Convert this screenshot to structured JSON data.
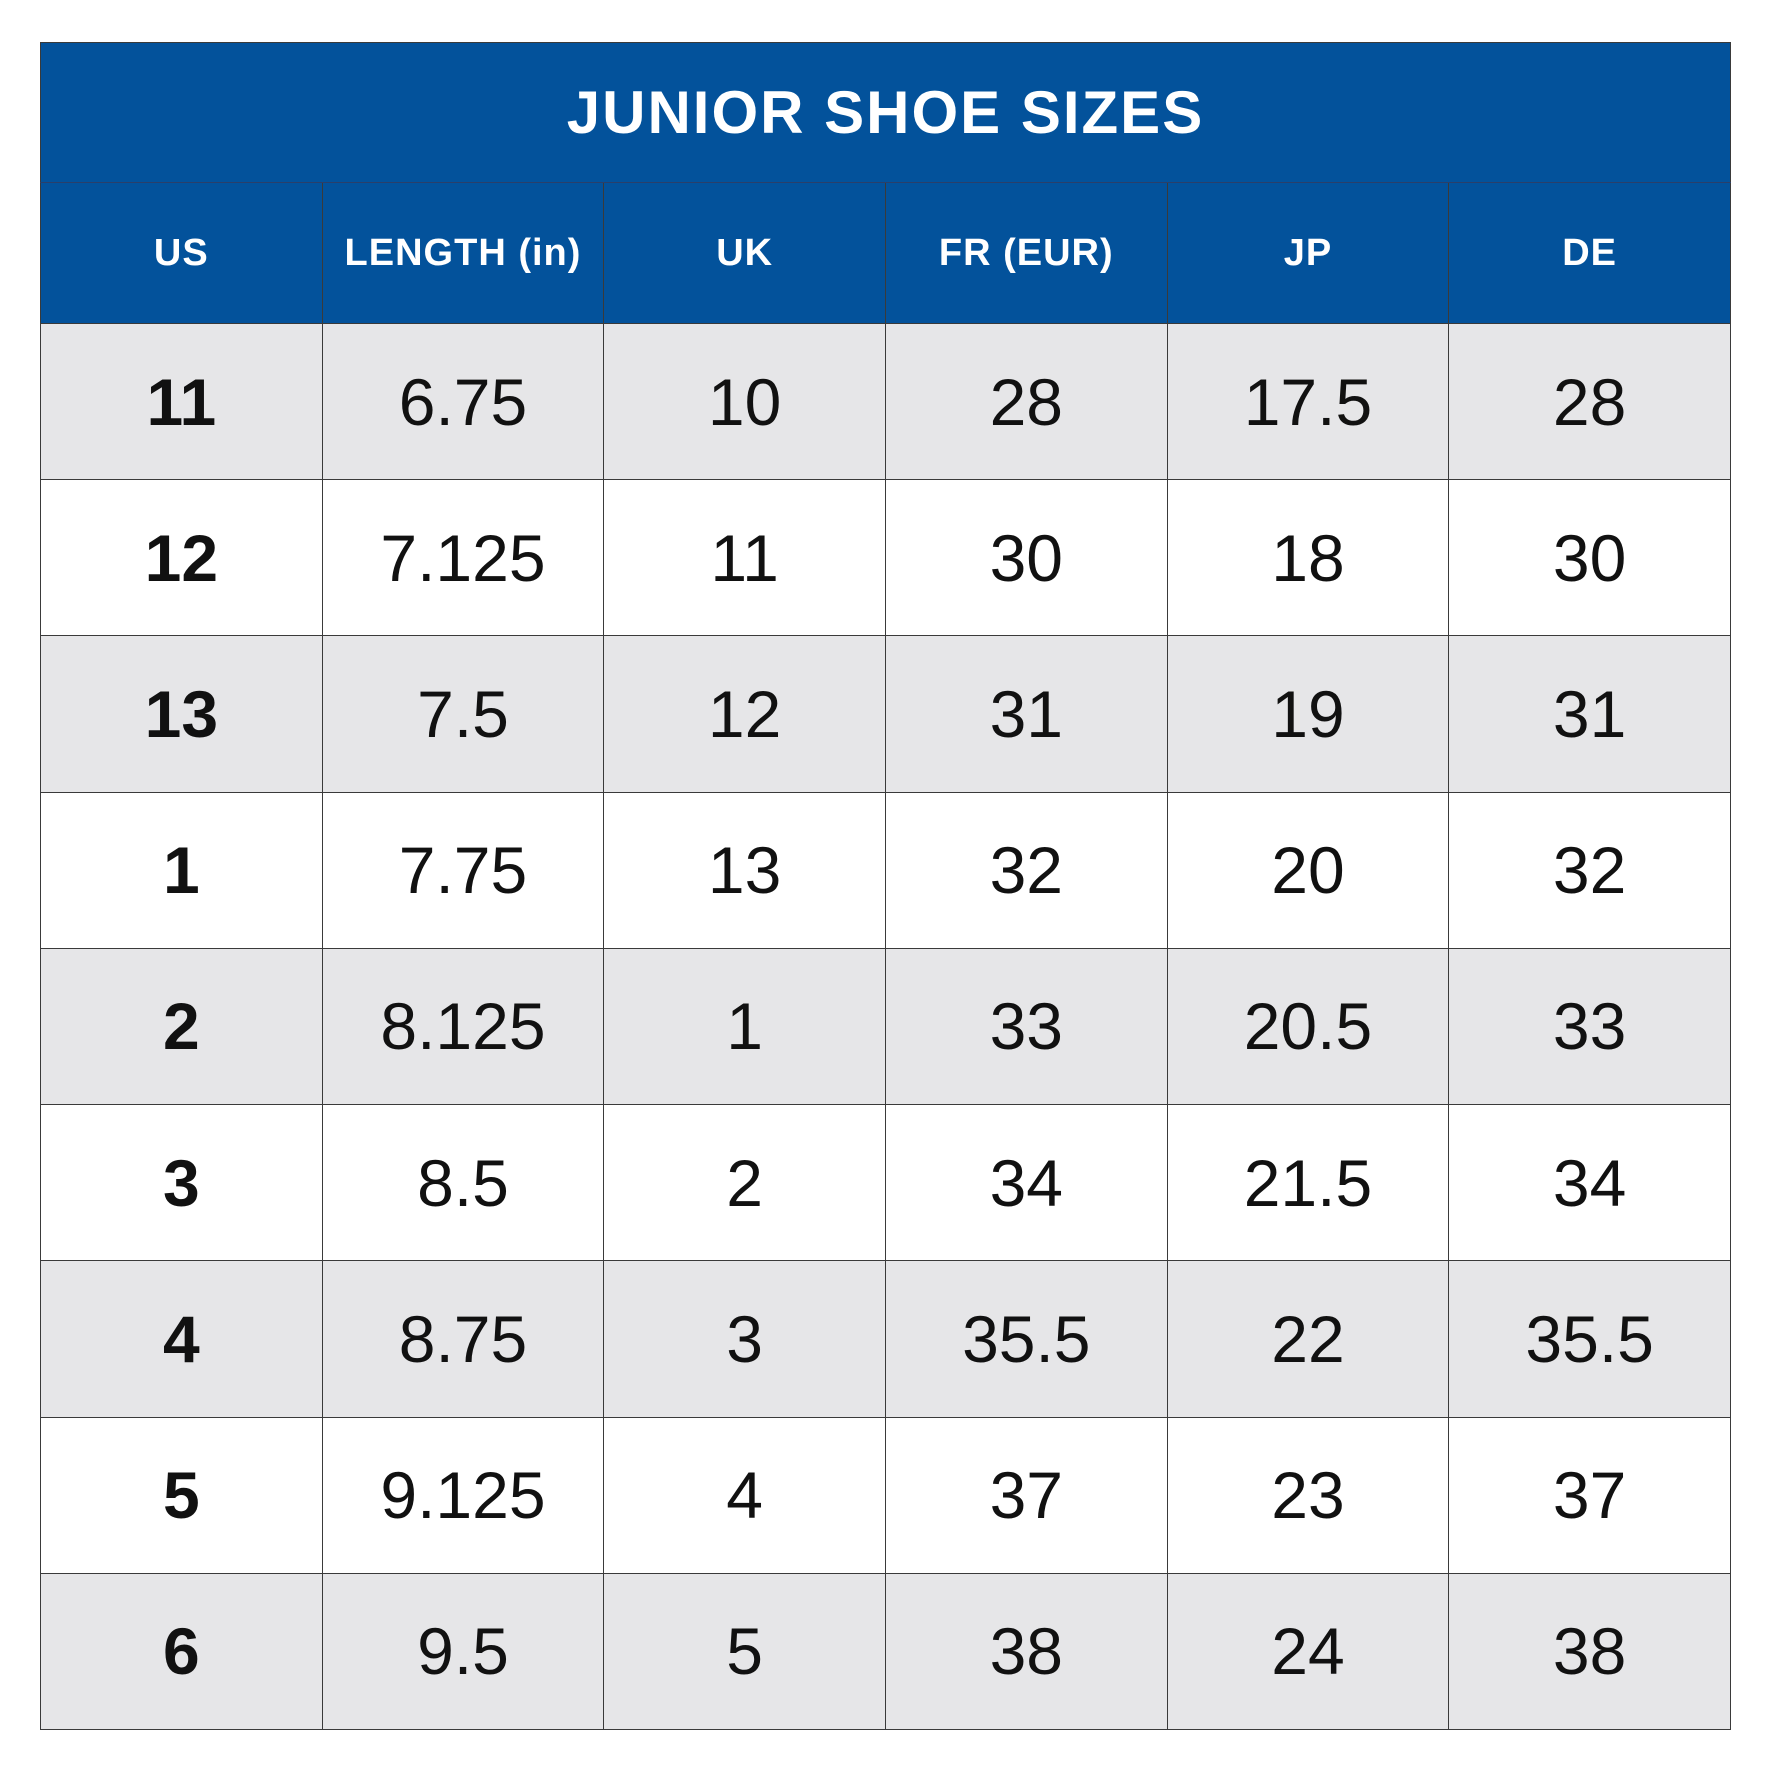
{
  "table": {
    "title": "JUNIOR SHOE SIZES",
    "columns": [
      "US",
      "LENGTH (in)",
      "UK",
      "FR (EUR)",
      "JP",
      "DE"
    ],
    "rows": [
      [
        "11",
        "6.75",
        "10",
        "28",
        "17.5",
        "28"
      ],
      [
        "12",
        "7.125",
        "11",
        "30",
        "18",
        "30"
      ],
      [
        "13",
        "7.5",
        "12",
        "31",
        "19",
        "31"
      ],
      [
        "1",
        "7.75",
        "13",
        "32",
        "20",
        "32"
      ],
      [
        "2",
        "8.125",
        "1",
        "33",
        "20.5",
        "33"
      ],
      [
        "3",
        "8.5",
        "2",
        "34",
        "21.5",
        "34"
      ],
      [
        "4",
        "8.75",
        "3",
        "35.5",
        "22",
        "35.5"
      ],
      [
        "5",
        "9.125",
        "4",
        "37",
        "23",
        "37"
      ],
      [
        "6",
        "9.5",
        "5",
        "38",
        "24",
        "38"
      ]
    ]
  }
}
